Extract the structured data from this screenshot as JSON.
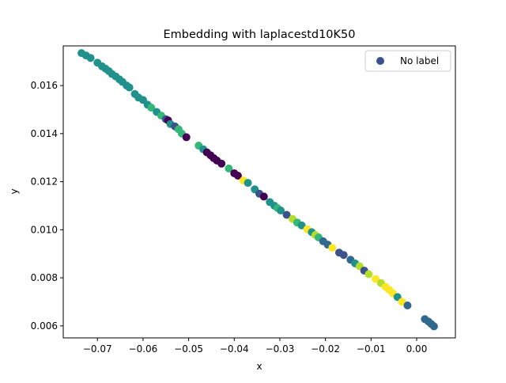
{
  "chart_data": {
    "type": "scatter",
    "title": "Embedding with laplacestd10K50",
    "xlabel": "x",
    "ylabel": "y",
    "xlim": [
      -0.0775,
      0.0085
    ],
    "ylim": [
      0.0055,
      0.01765
    ],
    "x_ticks": [
      -0.07,
      -0.06,
      -0.05,
      -0.04,
      -0.03,
      -0.02,
      -0.01,
      0.0
    ],
    "x_tick_labels": [
      "−0.07",
      "−0.06",
      "−0.05",
      "−0.04",
      "−0.03",
      "−0.02",
      "−0.01",
      "0.00"
    ],
    "y_ticks": [
      0.006,
      0.008,
      0.01,
      0.012,
      0.014,
      0.016
    ],
    "y_tick_labels": [
      "0.006",
      "0.008",
      "0.010",
      "0.012",
      "0.014",
      "0.016"
    ],
    "grid": false,
    "legend": {
      "placement": "top-right",
      "entries": [
        {
          "label": "No label",
          "color": "#3b528b"
        }
      ]
    },
    "series": [
      {
        "label": "No label",
        "points": [
          {
            "x": -0.0735,
            "y": 0.01735,
            "c": "#21918c"
          },
          {
            "x": -0.0725,
            "y": 0.01725,
            "c": "#21918c"
          },
          {
            "x": -0.0715,
            "y": 0.01715,
            "c": "#21918c"
          },
          {
            "x": -0.07,
            "y": 0.01695,
            "c": "#21918c"
          },
          {
            "x": -0.069,
            "y": 0.0168,
            "c": "#21918c"
          },
          {
            "x": -0.0682,
            "y": 0.0167,
            "c": "#21918c"
          },
          {
            "x": -0.0675,
            "y": 0.0166,
            "c": "#21918c"
          },
          {
            "x": -0.0668,
            "y": 0.01648,
            "c": "#21918c"
          },
          {
            "x": -0.066,
            "y": 0.01638,
            "c": "#21918c"
          },
          {
            "x": -0.0652,
            "y": 0.01626,
            "c": "#21918c"
          },
          {
            "x": -0.0645,
            "y": 0.01615,
            "c": "#21918c"
          },
          {
            "x": -0.0636,
            "y": 0.016,
            "c": "#21918c"
          },
          {
            "x": -0.063,
            "y": 0.01592,
            "c": "#21918c"
          },
          {
            "x": -0.0618,
            "y": 0.01565,
            "c": "#21918c"
          },
          {
            "x": -0.061,
            "y": 0.0155,
            "c": "#21918c"
          },
          {
            "x": -0.06,
            "y": 0.0154,
            "c": "#21918c"
          },
          {
            "x": -0.059,
            "y": 0.0152,
            "c": "#21918c"
          },
          {
            "x": -0.0582,
            "y": 0.01508,
            "c": "#35b779"
          },
          {
            "x": -0.057,
            "y": 0.0149,
            "c": "#21918c"
          },
          {
            "x": -0.056,
            "y": 0.01475,
            "c": "#35b779"
          },
          {
            "x": -0.055,
            "y": 0.0146,
            "c": "#3b528b"
          },
          {
            "x": -0.0545,
            "y": 0.01455,
            "c": "#440154"
          },
          {
            "x": -0.054,
            "y": 0.0144,
            "c": "#21918c"
          },
          {
            "x": -0.053,
            "y": 0.0143,
            "c": "#3b528b"
          },
          {
            "x": -0.0522,
            "y": 0.01418,
            "c": "#35b779"
          },
          {
            "x": -0.0515,
            "y": 0.014,
            "c": "#35b779"
          },
          {
            "x": -0.0505,
            "y": 0.01385,
            "c": "#440154"
          },
          {
            "x": -0.0478,
            "y": 0.0135,
            "c": "#35b779"
          },
          {
            "x": -0.0468,
            "y": 0.01335,
            "c": "#21918c"
          },
          {
            "x": -0.046,
            "y": 0.01322,
            "c": "#440154"
          },
          {
            "x": -0.0452,
            "y": 0.0131,
            "c": "#440154"
          },
          {
            "x": -0.0445,
            "y": 0.01298,
            "c": "#440154"
          },
          {
            "x": -0.0438,
            "y": 0.01288,
            "c": "#440154"
          },
          {
            "x": -0.0428,
            "y": 0.01275,
            "c": "#440154"
          },
          {
            "x": -0.0412,
            "y": 0.01255,
            "c": "#35b779"
          },
          {
            "x": -0.04,
            "y": 0.01235,
            "c": "#440154"
          },
          {
            "x": -0.0392,
            "y": 0.01225,
            "c": "#440154"
          },
          {
            "x": -0.038,
            "y": 0.01205,
            "c": "#fde725"
          },
          {
            "x": -0.037,
            "y": 0.01195,
            "c": "#21918c"
          },
          {
            "x": -0.0355,
            "y": 0.01168,
            "c": "#21918c"
          },
          {
            "x": -0.0345,
            "y": 0.0115,
            "c": "#3b528b"
          },
          {
            "x": -0.0335,
            "y": 0.01138,
            "c": "#440154"
          },
          {
            "x": -0.0322,
            "y": 0.01115,
            "c": "#21918c"
          },
          {
            "x": -0.0312,
            "y": 0.011,
            "c": "#21918c"
          },
          {
            "x": -0.0305,
            "y": 0.0109,
            "c": "#35b779"
          },
          {
            "x": -0.0298,
            "y": 0.0108,
            "c": "#21918c"
          },
          {
            "x": -0.0285,
            "y": 0.01062,
            "c": "#3b528b"
          },
          {
            "x": -0.0272,
            "y": 0.01045,
            "c": "#b5de2b"
          },
          {
            "x": -0.0262,
            "y": 0.0103,
            "c": "#35b779"
          },
          {
            "x": -0.0252,
            "y": 0.01018,
            "c": "#21918c"
          },
          {
            "x": -0.024,
            "y": 0.01002,
            "c": "#fde725"
          },
          {
            "x": -0.023,
            "y": 0.0099,
            "c": "#21918c"
          },
          {
            "x": -0.0222,
            "y": 0.00978,
            "c": "#b5de2b"
          },
          {
            "x": -0.0215,
            "y": 0.00968,
            "c": "#35b779"
          },
          {
            "x": -0.0205,
            "y": 0.00952,
            "c": "#31688e"
          },
          {
            "x": -0.0195,
            "y": 0.00938,
            "c": "#31688e"
          },
          {
            "x": -0.0185,
            "y": 0.00925,
            "c": "#fde725"
          },
          {
            "x": -0.017,
            "y": 0.00905,
            "c": "#3b528b"
          },
          {
            "x": -0.016,
            "y": 0.00895,
            "c": "#3b528b"
          },
          {
            "x": -0.0145,
            "y": 0.00875,
            "c": "#31688e"
          },
          {
            "x": -0.0135,
            "y": 0.0086,
            "c": "#21918c"
          },
          {
            "x": -0.0125,
            "y": 0.00848,
            "c": "#b5de2b"
          },
          {
            "x": -0.0115,
            "y": 0.0083,
            "c": "#3b528b"
          },
          {
            "x": -0.0105,
            "y": 0.00815,
            "c": "#b5de2b"
          },
          {
            "x": -0.009,
            "y": 0.00795,
            "c": "#fde725"
          },
          {
            "x": -0.0078,
            "y": 0.00778,
            "c": "#b5de2b"
          },
          {
            "x": -0.0068,
            "y": 0.00762,
            "c": "#fde725"
          },
          {
            "x": -0.006,
            "y": 0.0075,
            "c": "#fde725"
          },
          {
            "x": -0.0052,
            "y": 0.00735,
            "c": "#fde725"
          },
          {
            "x": -0.0042,
            "y": 0.0072,
            "c": "#21918c"
          },
          {
            "x": -0.0032,
            "y": 0.007,
            "c": "#fde725"
          },
          {
            "x": -0.002,
            "y": 0.00685,
            "c": "#31688e"
          },
          {
            "x": 0.0018,
            "y": 0.00628,
            "c": "#31688e"
          },
          {
            "x": 0.0026,
            "y": 0.00618,
            "c": "#31688e"
          },
          {
            "x": 0.0032,
            "y": 0.00608,
            "c": "#31688e"
          },
          {
            "x": 0.0038,
            "y": 0.00598,
            "c": "#31688e"
          }
        ]
      }
    ]
  }
}
